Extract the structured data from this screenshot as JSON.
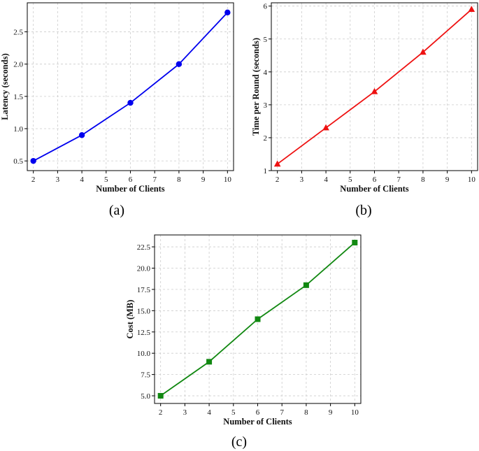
{
  "chart_data": [
    {
      "type": "line",
      "caption": "(a)",
      "xlabel": "Number of Clients",
      "ylabel": "Latency (seconds)",
      "xlim": [
        1.75,
        10.25
      ],
      "ylim": [
        0.35,
        2.95
      ],
      "xticks": [
        2,
        3,
        4,
        5,
        6,
        7,
        8,
        9,
        10
      ],
      "yticks": [
        0.5,
        1.0,
        1.5,
        2.0,
        2.5
      ],
      "ytick_labels": [
        "0.5",
        "1.0",
        "1.5",
        "2.0",
        "2.5"
      ],
      "grid": true,
      "color": "#0000ee",
      "marker": "circle",
      "x": [
        2,
        4,
        6,
        8,
        10
      ],
      "y": [
        0.5,
        0.9,
        1.4,
        2.0,
        2.8
      ]
    },
    {
      "type": "line",
      "caption": "(b)",
      "xlabel": "Number of Clients",
      "ylabel": "Time per Round (seconds)",
      "xlim": [
        1.75,
        10.25
      ],
      "ylim": [
        1.0,
        6.1
      ],
      "xticks": [
        2,
        3,
        4,
        5,
        6,
        7,
        8,
        9,
        10
      ],
      "yticks": [
        1,
        2,
        3,
        4,
        5,
        6
      ],
      "ytick_labels": [
        "1",
        "2",
        "3",
        "4",
        "5",
        "6"
      ],
      "grid": true,
      "color": "#ee1111",
      "marker": "triangle",
      "x": [
        2,
        4,
        6,
        8,
        10
      ],
      "y": [
        1.2,
        2.3,
        3.4,
        4.6,
        5.9
      ]
    },
    {
      "type": "line",
      "caption": "(c)",
      "xlabel": "Number of Clients",
      "ylabel": "Cost (MB)",
      "xlim": [
        1.75,
        10.25
      ],
      "ylim": [
        4.1,
        23.9
      ],
      "xticks": [
        2,
        3,
        4,
        5,
        6,
        7,
        8,
        9,
        10
      ],
      "yticks": [
        5.0,
        7.5,
        10.0,
        12.5,
        15.0,
        17.5,
        20.0,
        22.5
      ],
      "ytick_labels": [
        "5.0",
        "7.5",
        "10.0",
        "12.5",
        "15.0",
        "17.5",
        "20.0",
        "22.5"
      ],
      "grid": true,
      "color": "#118811",
      "marker": "square",
      "x": [
        2,
        4,
        6,
        8,
        10
      ],
      "y": [
        5,
        9,
        14,
        18,
        23
      ]
    }
  ]
}
